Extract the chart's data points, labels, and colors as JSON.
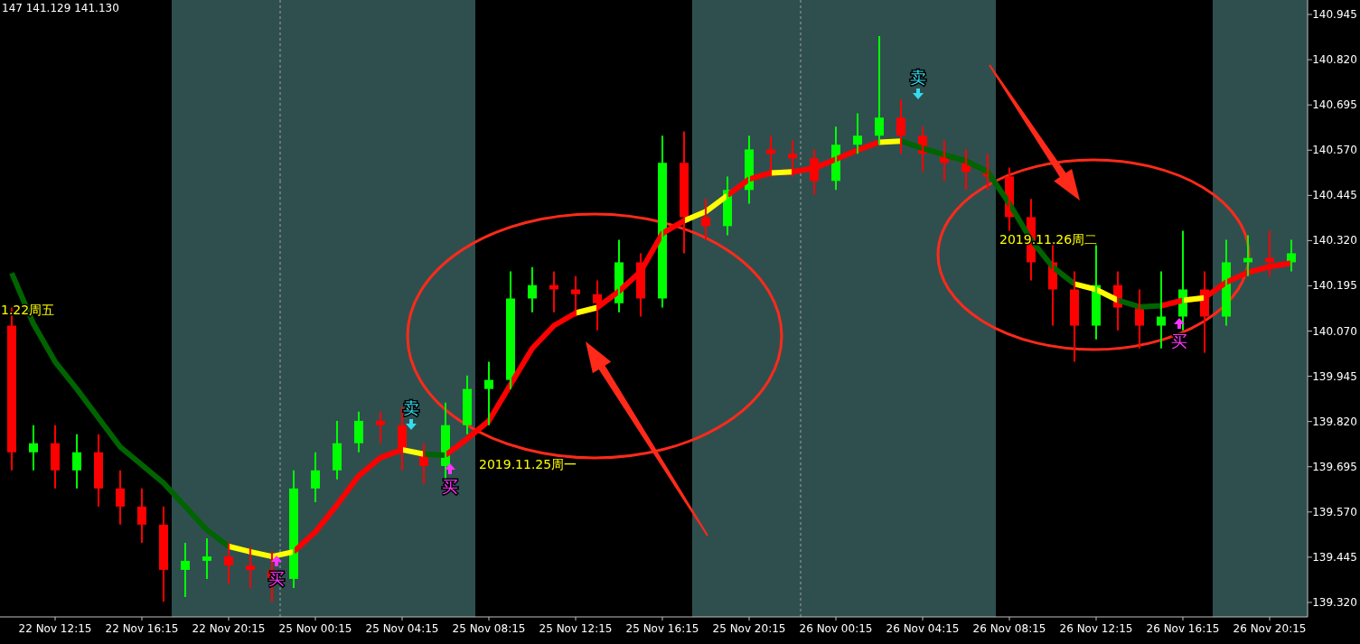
{
  "chart_data": {
    "type": "candlestick",
    "categories": [
      null,
      null,
      "22 Nov 12:15",
      null,
      null,
      null,
      "22 Nov 16:15",
      null,
      null,
      null,
      "22 Nov 20:15",
      null,
      null,
      null,
      "25 Nov 00:15",
      null,
      null,
      null,
      "25 Nov 04:15",
      null,
      null,
      null,
      "25 Nov 08:15",
      null,
      null,
      null,
      "25 Nov 12:15",
      null,
      null,
      null,
      "25 Nov 16:15",
      null,
      null,
      null,
      "25 Nov 20:15",
      null,
      null,
      null,
      "26 Nov 00:15",
      null,
      null,
      null,
      "26 Nov 04:15",
      null,
      null,
      null,
      "26 Nov 08:15",
      null,
      null,
      null,
      "26 Nov 12:15",
      null,
      null,
      null,
      "26 Nov 16:15",
      null,
      null,
      null,
      "26 Nov 20:15",
      null
    ],
    "ylim": [
      139.28,
      140.985
    ],
    "yticks": [
      {
        "value": 139.32,
        "label": "139.320"
      },
      {
        "value": 139.445,
        "label": "139.445"
      },
      {
        "value": 139.57,
        "label": "139.570"
      },
      {
        "value": 139.695,
        "label": "139.695"
      },
      {
        "value": 139.82,
        "label": "139.820"
      },
      {
        "value": 139.945,
        "label": "139.945"
      },
      {
        "value": 140.07,
        "label": "140.070"
      },
      {
        "value": 140.195,
        "label": "140.195"
      },
      {
        "value": 140.32,
        "label": "140.320"
      },
      {
        "value": 140.445,
        "label": "140.445"
      },
      {
        "value": 140.57,
        "label": "140.570"
      },
      {
        "value": 140.695,
        "label": "140.695"
      },
      {
        "value": 140.82,
        "label": "140.820"
      },
      {
        "value": 140.945,
        "label": "140.945"
      }
    ],
    "series": [
      {
        "ohlc": [
          [
            140.085,
            140.135,
            139.685,
            139.735
          ],
          [
            139.735,
            139.81,
            139.685,
            139.76
          ],
          [
            139.76,
            139.81,
            139.635,
            139.685
          ],
          [
            139.685,
            139.785,
            139.635,
            139.735
          ],
          [
            139.735,
            139.785,
            139.585,
            139.635
          ],
          [
            139.635,
            139.685,
            139.535,
            139.585
          ],
          [
            139.585,
            139.635,
            139.485,
            139.535
          ],
          [
            139.535,
            139.585,
            139.322,
            139.41
          ],
          [
            139.41,
            139.485,
            139.335,
            139.435
          ],
          [
            139.435,
            139.497,
            139.385,
            139.447
          ],
          [
            139.447,
            139.485,
            139.372,
            139.422
          ],
          [
            139.422,
            139.472,
            139.36,
            139.41
          ],
          [
            139.41,
            139.46,
            139.322,
            139.385
          ],
          [
            139.385,
            139.685,
            139.36,
            139.635
          ],
          [
            139.635,
            139.735,
            139.597,
            139.685
          ],
          [
            139.685,
            139.822,
            139.66,
            139.76
          ],
          [
            139.76,
            139.847,
            139.735,
            139.822
          ],
          [
            139.822,
            139.847,
            139.76,
            139.81
          ],
          [
            139.81,
            139.86,
            139.685,
            139.735
          ],
          [
            139.735,
            139.76,
            139.647,
            139.697
          ],
          [
            139.697,
            139.872,
            139.66,
            139.81
          ],
          [
            139.81,
            139.947,
            139.785,
            139.91
          ],
          [
            139.91,
            139.985,
            139.81,
            139.935
          ],
          [
            139.935,
            140.235,
            139.91,
            140.16
          ],
          [
            140.16,
            140.247,
            140.122,
            140.197
          ],
          [
            140.197,
            140.235,
            140.122,
            140.185
          ],
          [
            140.185,
            140.222,
            140.11,
            140.172
          ],
          [
            140.172,
            140.21,
            140.072,
            140.147
          ],
          [
            140.147,
            140.322,
            140.122,
            140.26
          ],
          [
            140.26,
            140.285,
            140.11,
            140.16
          ],
          [
            140.16,
            140.61,
            140.135,
            140.535
          ],
          [
            140.535,
            140.622,
            140.285,
            140.385
          ],
          [
            140.385,
            140.435,
            140.322,
            140.36
          ],
          [
            140.36,
            140.497,
            140.335,
            140.46
          ],
          [
            140.46,
            140.61,
            140.422,
            140.572
          ],
          [
            140.572,
            140.61,
            140.497,
            140.56
          ],
          [
            140.56,
            140.597,
            140.497,
            140.547
          ],
          [
            140.547,
            140.572,
            140.447,
            140.485
          ],
          [
            140.485,
            140.635,
            140.46,
            140.585
          ],
          [
            140.585,
            140.672,
            140.56,
            140.61
          ],
          [
            140.61,
            140.885,
            140.585,
            140.66
          ],
          [
            140.66,
            140.71,
            140.56,
            140.61
          ],
          [
            140.61,
            140.635,
            140.51,
            140.56
          ],
          [
            140.56,
            140.597,
            140.485,
            140.535
          ],
          [
            140.535,
            140.572,
            140.46,
            140.51
          ],
          [
            140.51,
            140.56,
            140.46,
            140.497
          ],
          [
            140.497,
            140.522,
            140.347,
            140.385
          ],
          [
            140.385,
            140.435,
            140.21,
            140.26
          ],
          [
            140.26,
            140.31,
            140.085,
            140.185
          ],
          [
            140.185,
            140.235,
            139.985,
            140.085
          ],
          [
            140.085,
            140.31,
            140.047,
            140.197
          ],
          [
            140.197,
            140.235,
            140.072,
            140.135
          ],
          [
            140.135,
            140.185,
            140.022,
            140.085
          ],
          [
            140.085,
            140.235,
            140.022,
            140.11
          ],
          [
            140.11,
            140.347,
            140.072,
            140.185
          ],
          [
            140.185,
            140.235,
            140.01,
            140.11
          ],
          [
            140.11,
            140.322,
            140.085,
            140.26
          ],
          [
            140.26,
            140.335,
            140.222,
            140.272
          ],
          [
            140.272,
            140.347,
            140.222,
            140.26
          ],
          [
            140.26,
            140.322,
            140.235,
            140.285
          ]
        ],
        "colors": [
          "#ff0000",
          "#00ff00",
          "#ff0000",
          "#00ff00",
          "#ff0000",
          "#ff0000",
          "#ff0000",
          "#ff0000",
          "#00ff00",
          "#00ff00",
          "#ff0000",
          "#ff0000",
          "#ff0000",
          "#00ff00",
          "#00ff00",
          "#00ff00",
          "#00ff00",
          "#ff0000",
          "#ff0000",
          "#ff0000",
          "#00ff00",
          "#00ff00",
          "#00ff00",
          "#00ff00",
          "#00ff00",
          "#ff0000",
          "#ff0000",
          "#ff0000",
          "#00ff00",
          "#ff0000",
          "#00ff00",
          "#ff0000",
          "#ff0000",
          "#00ff00",
          "#00ff00",
          "#ff0000",
          "#ff0000",
          "#ff0000",
          "#00ff00",
          "#00ff00",
          "#00ff00",
          "#ff0000",
          "#ff0000",
          "#ff0000",
          "#ff0000",
          "#ff0000",
          "#ff0000",
          "#ff0000",
          "#ff0000",
          "#ff0000",
          "#00ff00",
          "#ff0000",
          "#ff0000",
          "#00ff00",
          "#00ff00",
          "#ff0000",
          "#00ff00",
          "#00ff00",
          "#ff0000",
          "#00ff00"
        ]
      },
      {
        "type": "line",
        "color": "#ff0000",
        "values": [
          null,
          null,
          null,
          null,
          null,
          null,
          null,
          null,
          null,
          null,
          null,
          null,
          null,
          139.46,
          139.515,
          139.59,
          139.67,
          139.72,
          139.742,
          null,
          139.727,
          139.772,
          139.822,
          139.922,
          140.022,
          140.085,
          140.12,
          140.135,
          140.18,
          140.235,
          140.34,
          140.375,
          null,
          140.445,
          140.49,
          140.507,
          140.51,
          140.52,
          140.545,
          140.57,
          140.592,
          null,
          null,
          null,
          null,
          null,
          null,
          null,
          null,
          null,
          null,
          null,
          null,
          140.14,
          140.155,
          140.162,
          140.205,
          140.232,
          140.248,
          140.258
        ]
      },
      {
        "type": "line",
        "color": "#006400",
        "values": [
          140.23,
          140.09,
          139.985,
          139.91,
          139.83,
          139.75,
          139.7,
          139.65,
          139.585,
          139.52,
          139.475,
          null,
          null,
          null,
          null,
          null,
          null,
          null,
          null,
          139.73,
          139.727,
          null,
          null,
          null,
          null,
          null,
          null,
          null,
          null,
          null,
          null,
          null,
          null,
          null,
          null,
          null,
          null,
          null,
          null,
          null,
          null,
          140.595,
          140.575,
          140.557,
          140.54,
          140.51,
          140.422,
          140.322,
          140.247,
          140.2,
          null,
          140.155,
          140.137,
          140.14,
          null,
          null,
          null,
          null,
          null,
          null
        ]
      },
      {
        "type": "line",
        "color": "#ffff00",
        "values": [
          null,
          null,
          null,
          null,
          null,
          null,
          null,
          null,
          null,
          null,
          139.475,
          139.46,
          139.447,
          139.46,
          null,
          null,
          null,
          null,
          139.742,
          139.73,
          null,
          null,
          null,
          null,
          null,
          null,
          140.12,
          140.135,
          null,
          null,
          null,
          140.375,
          140.4,
          140.445,
          null,
          140.507,
          140.51,
          null,
          null,
          null,
          140.592,
          140.595,
          null,
          null,
          null,
          null,
          null,
          null,
          null,
          140.2,
          140.185,
          140.155,
          null,
          null,
          140.155,
          140.162,
          null,
          null,
          null,
          null
        ]
      }
    ],
    "annotations": [
      "147 141.129 141.130",
      "1.22周五",
      "2019.11.25周一",
      "2019.11.26周二",
      "卖",
      "买",
      {
        "text": "买",
        "y": 139.435
      },
      "卖",
      "买"
    ],
    "grid": false
  }
}
